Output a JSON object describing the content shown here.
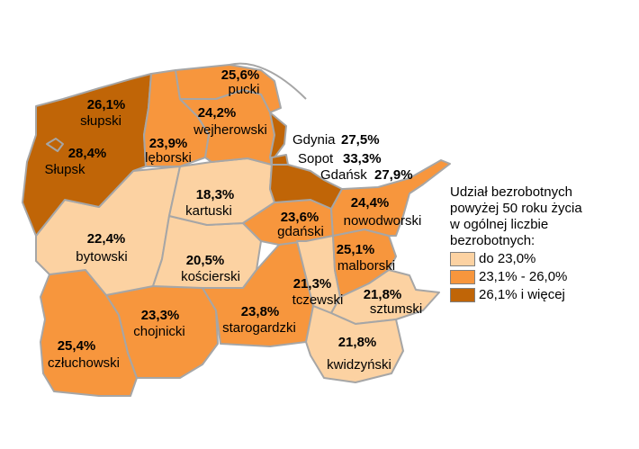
{
  "map": {
    "colors": {
      "low": "#fcd2a2",
      "mid": "#f7963d",
      "high": "#c06507",
      "border": "#a6a6a6"
    },
    "regions": [
      {
        "id": "slupski",
        "name": "słupski",
        "value": "26,1%",
        "class": "high"
      },
      {
        "id": "slupsk",
        "name": "Słupsk",
        "value": "28,4%",
        "class": "high"
      },
      {
        "id": "pucki",
        "name": "pucki",
        "value": "25,6%",
        "class": "mid"
      },
      {
        "id": "wejherowski",
        "name": "wejherowski",
        "value": "24,2%",
        "class": "mid"
      },
      {
        "id": "leborski",
        "name": "lęborski",
        "value": "23,9%",
        "class": "mid"
      },
      {
        "id": "gdynia",
        "name": "Gdynia",
        "value": "27,5%",
        "class": "high"
      },
      {
        "id": "sopot",
        "name": "Sopot",
        "value": "33,3%",
        "class": "high"
      },
      {
        "id": "gdansk",
        "name": "Gdańsk",
        "value": "27,9%",
        "class": "high"
      },
      {
        "id": "kartuski",
        "name": "kartuski",
        "value": "18,3%",
        "class": "low"
      },
      {
        "id": "nowodworski",
        "name": "nowodworski",
        "value": "24,4%",
        "class": "mid"
      },
      {
        "id": "gdanski",
        "name": "gdański",
        "value": "23,6%",
        "class": "mid"
      },
      {
        "id": "bytowski",
        "name": "bytowski",
        "value": "22,4%",
        "class": "low"
      },
      {
        "id": "malborski",
        "name": "malborski",
        "value": "25,1%",
        "class": "mid"
      },
      {
        "id": "koscierski",
        "name": "kościerski",
        "value": "20,5%",
        "class": "low"
      },
      {
        "id": "tczewski",
        "name": "tczewski",
        "value": "21,3%",
        "class": "low"
      },
      {
        "id": "sztumski",
        "name": "sztumski",
        "value": "21,8%",
        "class": "low"
      },
      {
        "id": "chojnicki",
        "name": "chojnicki",
        "value": "23,3%",
        "class": "mid"
      },
      {
        "id": "starogardzki",
        "name": "starogardzki",
        "value": "23,8%",
        "class": "mid"
      },
      {
        "id": "czluchowski",
        "name": "człuchowski",
        "value": "25,4%",
        "class": "mid"
      },
      {
        "id": "kwidzynski",
        "name": "kwidzyński",
        "value": "21,8%",
        "class": "low"
      }
    ]
  },
  "legend": {
    "title_lines": [
      "Udział bezrobotnych",
      "powyżej 50 roku życia",
      "w ogólnej liczbie",
      "bezrobotnych:"
    ],
    "items": [
      {
        "label": "do 23,0%",
        "class": "low"
      },
      {
        "label": "23,1% - 26,0%",
        "class": "mid"
      },
      {
        "label": "26,1% i więcej",
        "class": "high"
      }
    ]
  }
}
